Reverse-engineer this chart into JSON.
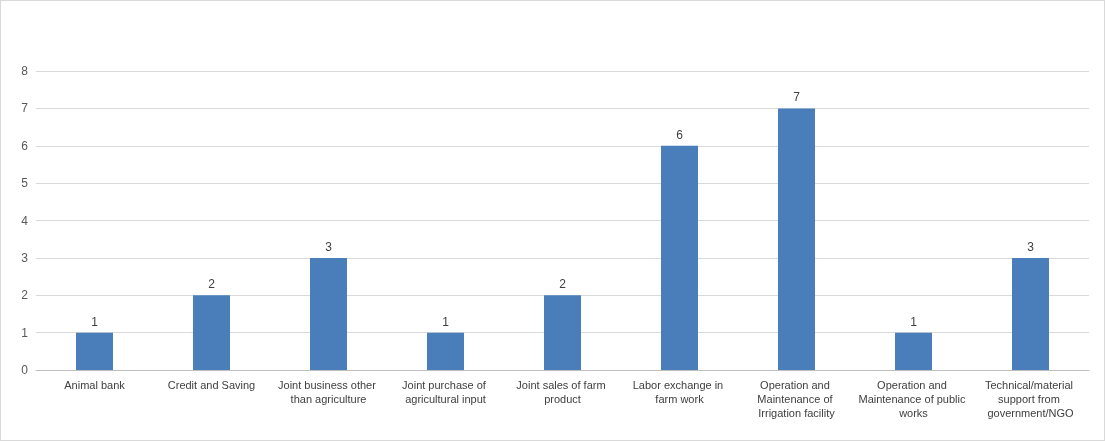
{
  "chart_data": {
    "type": "bar",
    "categories": [
      "Animal bank",
      "Credit and Saving",
      "Joint business other than agriculture",
      "Joint purchase of agricultural input",
      "Joint sales of farm product",
      "Labor exchange in farm work",
      "Operation and Maintenance of Irrigation facility",
      "Operation and Maintenance of public works",
      "Technical/material support from government/NGO"
    ],
    "values": [
      1,
      2,
      3,
      1,
      2,
      6,
      7,
      1,
      3
    ],
    "color": "#4a7ebb",
    "ylim": [
      0,
      8
    ],
    "yticks": [
      0,
      1,
      2,
      3,
      4,
      5,
      6,
      7,
      8
    ],
    "grid": "y",
    "data_labels": true
  }
}
